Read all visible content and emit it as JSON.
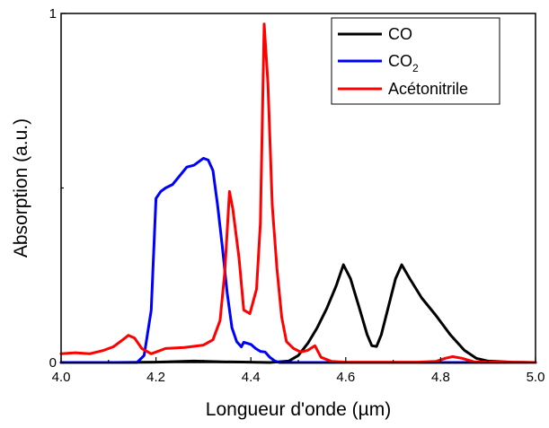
{
  "chart_data": {
    "type": "line",
    "xlabel": "Longueur d'onde (µm)",
    "ylabel": "Absorption (a.u.)",
    "xlim": [
      4.0,
      5.0
    ],
    "ylim": [
      0,
      1
    ],
    "x_ticks": [
      "4.0",
      "4.2",
      "4.4",
      "4.6",
      "4.8",
      "5.0"
    ],
    "y_ticks": [
      "0",
      "1"
    ],
    "grid": false,
    "legend_placement": "top-right",
    "series": [
      {
        "name": "CO",
        "color": "#000000",
        "points": [
          [
            4.0,
            0.0
          ],
          [
            4.1,
            0.0
          ],
          [
            4.2,
            0.001
          ],
          [
            4.28,
            0.004
          ],
          [
            4.34,
            0.002
          ],
          [
            4.44,
            0.0
          ],
          [
            4.48,
            0.004
          ],
          [
            4.5,
            0.02
          ],
          [
            4.52,
            0.055
          ],
          [
            4.54,
            0.1
          ],
          [
            4.56,
            0.155
          ],
          [
            4.58,
            0.22
          ],
          [
            4.595,
            0.28
          ],
          [
            4.61,
            0.24
          ],
          [
            4.63,
            0.15
          ],
          [
            4.645,
            0.08
          ],
          [
            4.655,
            0.048
          ],
          [
            4.665,
            0.046
          ],
          [
            4.675,
            0.08
          ],
          [
            4.69,
            0.16
          ],
          [
            4.705,
            0.24
          ],
          [
            4.718,
            0.28
          ],
          [
            4.735,
            0.24
          ],
          [
            4.76,
            0.185
          ],
          [
            4.79,
            0.135
          ],
          [
            4.82,
            0.08
          ],
          [
            4.85,
            0.035
          ],
          [
            4.875,
            0.012
          ],
          [
            4.9,
            0.004
          ],
          [
            4.95,
            0.001
          ],
          [
            5.0,
            0.0
          ]
        ]
      },
      {
        "name": "CO",
        "name_subscript": "2",
        "color": "#0000ff",
        "points": [
          [
            4.0,
            0.0
          ],
          [
            4.16,
            0.0
          ],
          [
            4.175,
            0.02
          ],
          [
            4.19,
            0.15
          ],
          [
            4.2,
            0.47
          ],
          [
            4.21,
            0.49
          ],
          [
            4.22,
            0.5
          ],
          [
            4.235,
            0.51
          ],
          [
            4.25,
            0.535
          ],
          [
            4.265,
            0.56
          ],
          [
            4.28,
            0.565
          ],
          [
            4.29,
            0.575
          ],
          [
            4.3,
            0.585
          ],
          [
            4.31,
            0.58
          ],
          [
            4.32,
            0.55
          ],
          [
            4.33,
            0.45
          ],
          [
            4.34,
            0.33
          ],
          [
            4.35,
            0.2
          ],
          [
            4.36,
            0.1
          ],
          [
            4.37,
            0.06
          ],
          [
            4.38,
            0.045
          ],
          [
            4.385,
            0.058
          ],
          [
            4.4,
            0.052
          ],
          [
            4.41,
            0.04
          ],
          [
            4.42,
            0.032
          ],
          [
            4.43,
            0.03
          ],
          [
            4.44,
            0.015
          ],
          [
            4.45,
            0.005
          ],
          [
            4.46,
            0.0
          ],
          [
            5.0,
            0.0
          ]
        ]
      },
      {
        "name": "Acétonitrile",
        "color": "#ff0000",
        "points": [
          [
            4.0,
            0.025
          ],
          [
            4.03,
            0.028
          ],
          [
            4.06,
            0.025
          ],
          [
            4.09,
            0.035
          ],
          [
            4.11,
            0.045
          ],
          [
            4.13,
            0.065
          ],
          [
            4.142,
            0.078
          ],
          [
            4.155,
            0.07
          ],
          [
            4.17,
            0.04
          ],
          [
            4.19,
            0.025
          ],
          [
            4.22,
            0.04
          ],
          [
            4.26,
            0.043
          ],
          [
            4.3,
            0.05
          ],
          [
            4.32,
            0.065
          ],
          [
            4.335,
            0.12
          ],
          [
            4.345,
            0.26
          ],
          [
            4.355,
            0.49
          ],
          [
            4.362,
            0.44
          ],
          [
            4.375,
            0.3
          ],
          [
            4.385,
            0.15
          ],
          [
            4.398,
            0.14
          ],
          [
            4.412,
            0.21
          ],
          [
            4.42,
            0.4
          ],
          [
            4.428,
            0.97
          ],
          [
            4.436,
            0.8
          ],
          [
            4.445,
            0.45
          ],
          [
            4.455,
            0.27
          ],
          [
            4.465,
            0.13
          ],
          [
            4.475,
            0.06
          ],
          [
            4.49,
            0.04
          ],
          [
            4.505,
            0.03
          ],
          [
            4.52,
            0.035
          ],
          [
            4.535,
            0.048
          ],
          [
            4.548,
            0.015
          ],
          [
            4.57,
            0.003
          ],
          [
            4.6,
            0.001
          ],
          [
            4.75,
            0.001
          ],
          [
            4.79,
            0.003
          ],
          [
            4.81,
            0.012
          ],
          [
            4.825,
            0.017
          ],
          [
            4.845,
            0.012
          ],
          [
            4.87,
            0.002
          ],
          [
            5.0,
            0.0
          ]
        ]
      }
    ]
  }
}
